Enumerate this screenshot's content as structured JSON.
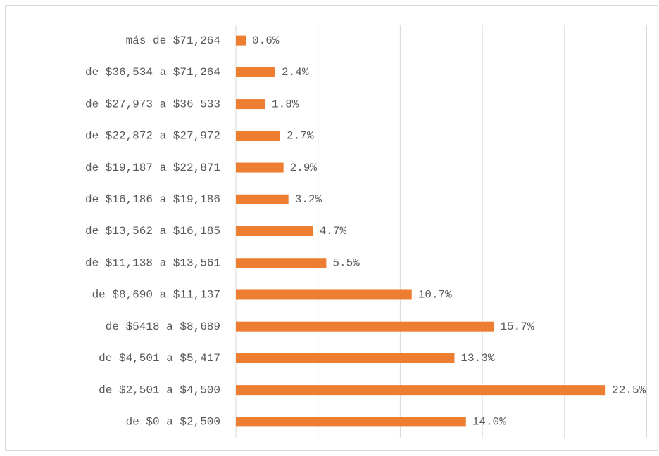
{
  "chart_data": {
    "type": "bar",
    "orientation": "horizontal",
    "categories": [
      "más de $71,264",
      "de $36,534 a $71,264",
      "de $27,973 a $36 533",
      "de $22,872 a $27,972",
      "de $19,187 a $22,871",
      "de $16,186 a $19,186",
      "de $13,562 a $16,185",
      "de $11,138 a $13,561",
      "de $8,690 a $11,137",
      "de $5418 a $8,689",
      "de $4,501 a $5,417",
      "de $2,501 a $4,500",
      "de $0 a $2,500"
    ],
    "values": [
      0.6,
      2.4,
      1.8,
      2.7,
      2.9,
      3.2,
      4.7,
      5.5,
      10.7,
      15.7,
      13.3,
      22.5,
      14.0
    ],
    "value_labels": [
      "0.6%",
      "2.4%",
      "1.8%",
      "2.7%",
      "2.9%",
      "3.2%",
      "4.7%",
      "5.5%",
      "10.7%",
      "15.7%",
      "13.3%",
      "22.5%",
      "14.0%"
    ],
    "color": "#ed7d31",
    "xlim": [
      0,
      25
    ],
    "xticks": [
      0,
      5,
      10,
      15,
      20,
      25
    ],
    "grid": true
  }
}
